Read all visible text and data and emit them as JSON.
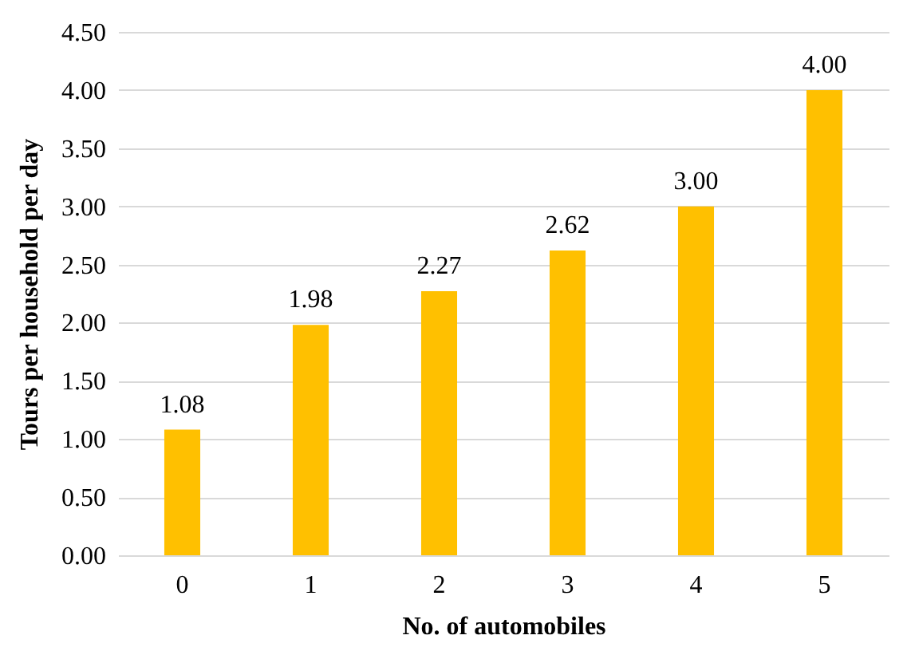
{
  "chart_data": {
    "type": "bar",
    "xlabel": "No. of automobiles",
    "ylabel": "Tours per household per day",
    "categories": [
      "0",
      "1",
      "2",
      "3",
      "4",
      "5"
    ],
    "values": [
      1.08,
      1.98,
      2.27,
      2.62,
      3.0,
      4.0
    ],
    "value_labels": [
      "1.08",
      "1.98",
      "2.27",
      "2.62",
      "3.00",
      "4.00"
    ],
    "color": "#ffc000",
    "ylim": [
      0,
      4.5
    ],
    "yticks": [
      {
        "value": 0,
        "label": "0.00"
      },
      {
        "value": 0.5,
        "label": "0.50"
      },
      {
        "value": 1,
        "label": "1.00"
      },
      {
        "value": 1.5,
        "label": "1.50"
      },
      {
        "value": 2,
        "label": "2.00"
      },
      {
        "value": 2.5,
        "label": "2.50"
      },
      {
        "value": 3,
        "label": "3.00"
      },
      {
        "value": 3.5,
        "label": "3.50"
      },
      {
        "value": 4,
        "label": "4.00"
      },
      {
        "value": 4.5,
        "label": "4.50"
      }
    ],
    "grid": "y"
  }
}
